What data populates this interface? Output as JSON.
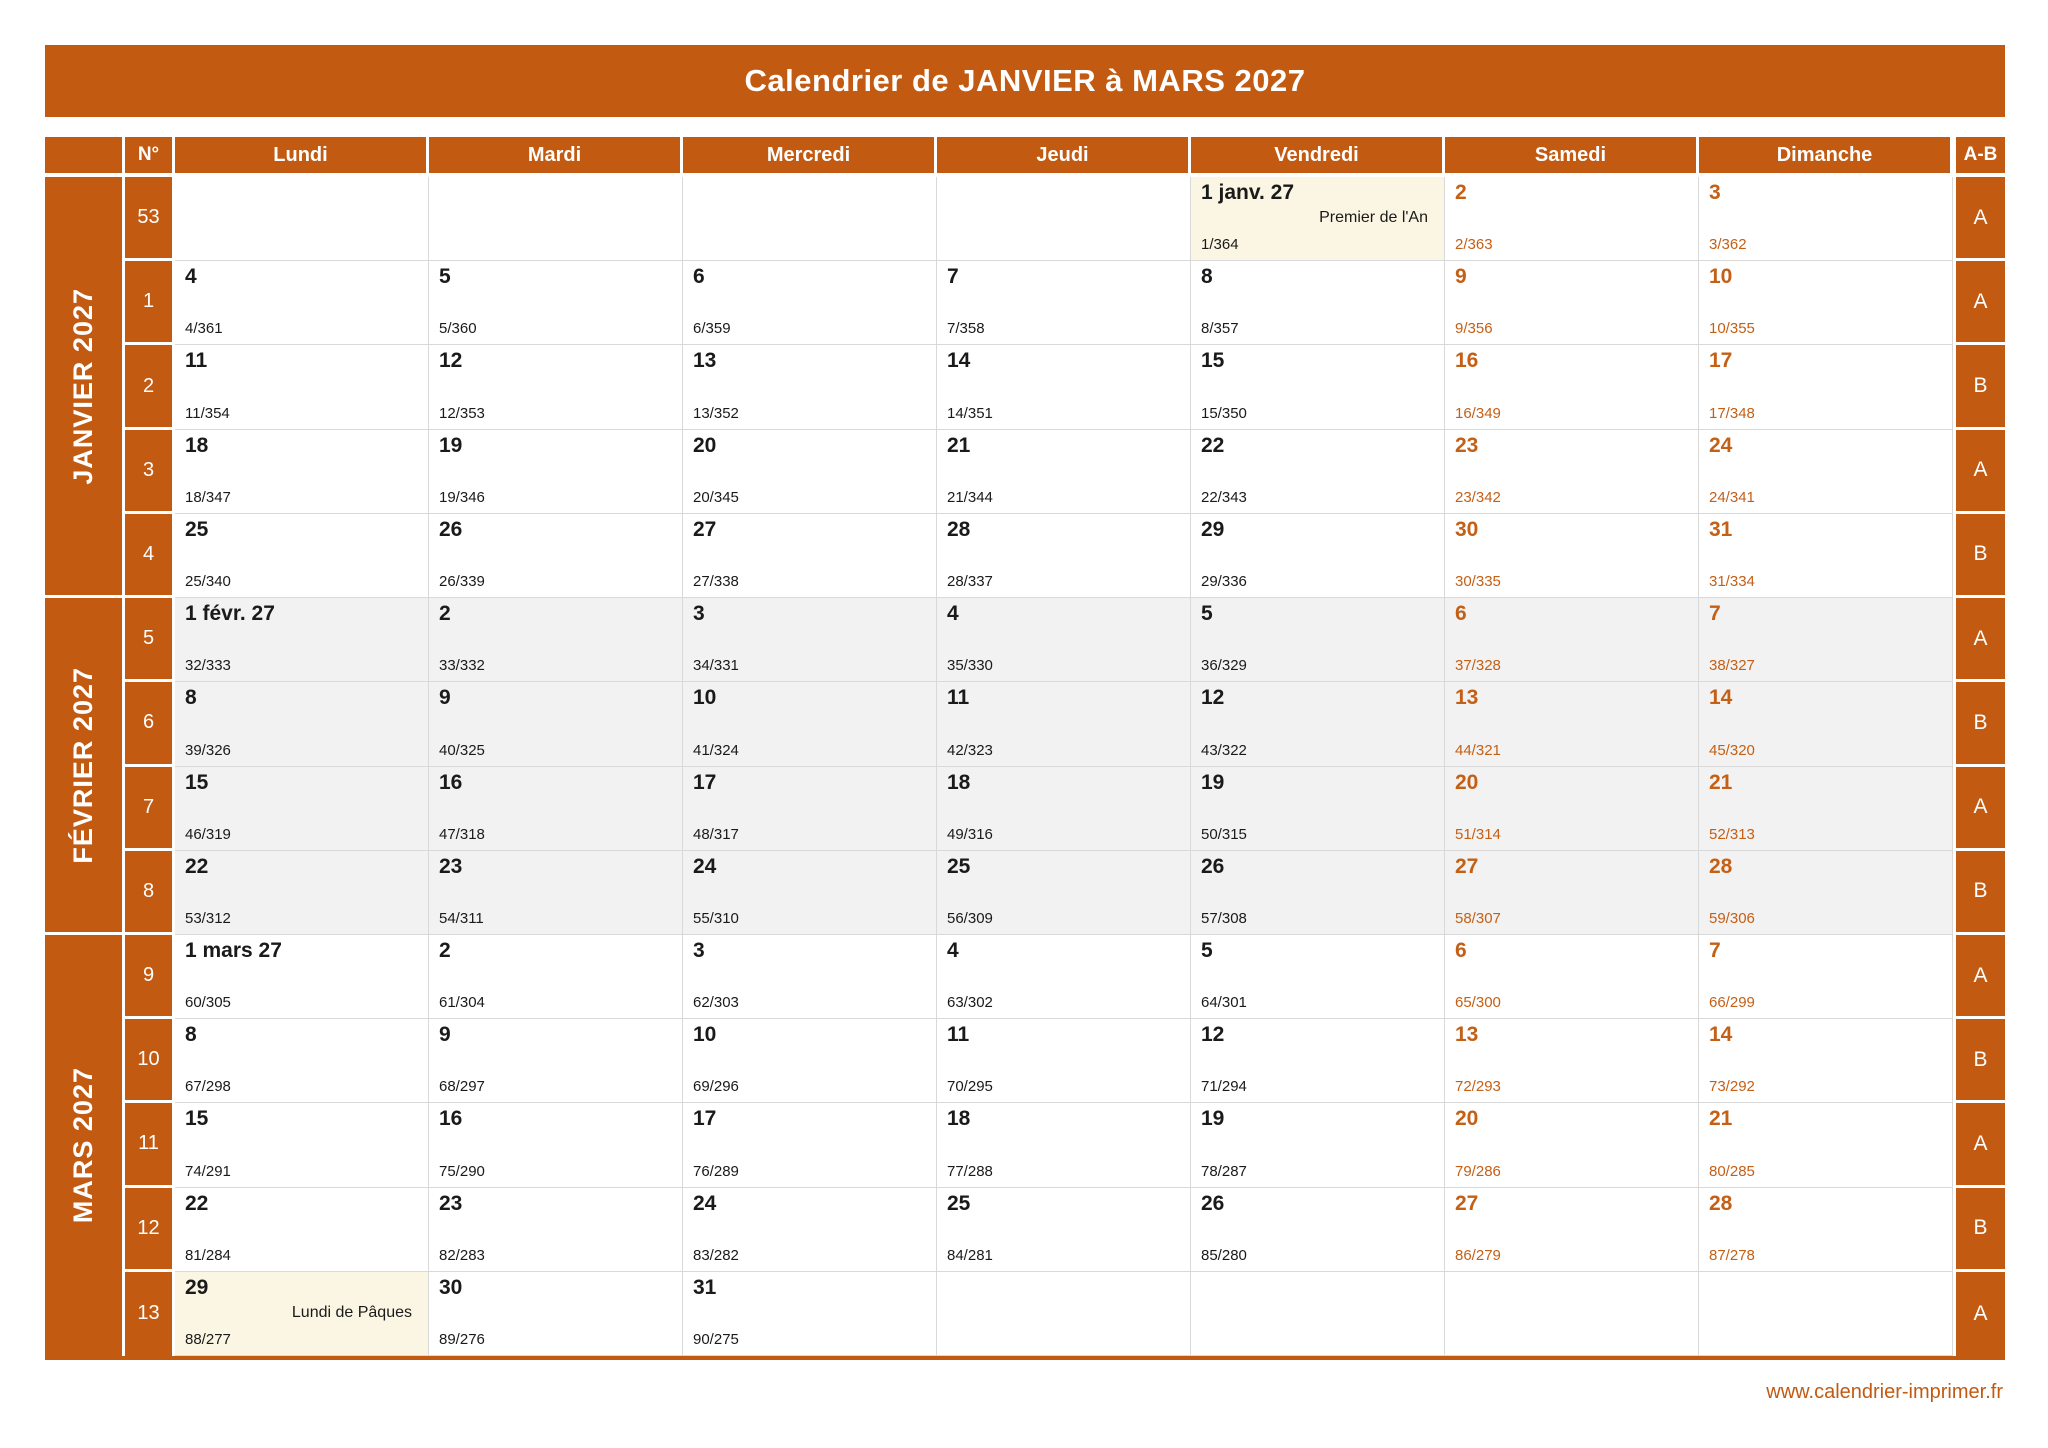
{
  "title": "Calendrier de JANVIER à MARS 2027",
  "footer": {
    "url": "www.calendrier-imprimer.fr"
  },
  "colors": {
    "orange": "#C25A12",
    "weekend_text": "#C45F16",
    "holiday_bg": "#FBF6E3",
    "february_row_bg": "#F2F2F2",
    "grid_line": "#D9D9D9",
    "header_text": "#FFFFFF",
    "text_dark": "#1A1A1A"
  },
  "table": {
    "week_col_header": "N°",
    "ab_header": "A-B",
    "day_headers": [
      "Lundi",
      "Mardi",
      "Mercredi",
      "Jeudi",
      "Vendredi",
      "Samedi",
      "Dimanche"
    ],
    "months": [
      {
        "label": "JANVIER 2027"
      },
      {
        "label": "FÉVRIER 2027"
      },
      {
        "label": "MARS 2027"
      }
    ],
    "weeks": [
      {
        "num": "53",
        "ab": "A",
        "shaded": false,
        "days": [
          null,
          null,
          null,
          null,
          {
            "label": "1 janv. 27",
            "holiday": "Premier de l'An",
            "doy": "1/364"
          },
          {
            "label": "2",
            "doy": "2/363"
          },
          {
            "label": "3",
            "doy": "3/362"
          }
        ]
      },
      {
        "num": "1",
        "ab": "A",
        "shaded": false,
        "days": [
          {
            "label": "4",
            "doy": "4/361"
          },
          {
            "label": "5",
            "doy": "5/360"
          },
          {
            "label": "6",
            "doy": "6/359"
          },
          {
            "label": "7",
            "doy": "7/358"
          },
          {
            "label": "8",
            "doy": "8/357"
          },
          {
            "label": "9",
            "doy": "9/356"
          },
          {
            "label": "10",
            "doy": "10/355"
          }
        ]
      },
      {
        "num": "2",
        "ab": "B",
        "shaded": false,
        "days": [
          {
            "label": "11",
            "doy": "11/354"
          },
          {
            "label": "12",
            "doy": "12/353"
          },
          {
            "label": "13",
            "doy": "13/352"
          },
          {
            "label": "14",
            "doy": "14/351"
          },
          {
            "label": "15",
            "doy": "15/350"
          },
          {
            "label": "16",
            "doy": "16/349"
          },
          {
            "label": "17",
            "doy": "17/348"
          }
        ]
      },
      {
        "num": "3",
        "ab": "A",
        "shaded": false,
        "days": [
          {
            "label": "18",
            "doy": "18/347"
          },
          {
            "label": "19",
            "doy": "19/346"
          },
          {
            "label": "20",
            "doy": "20/345"
          },
          {
            "label": "21",
            "doy": "21/344"
          },
          {
            "label": "22",
            "doy": "22/343"
          },
          {
            "label": "23",
            "doy": "23/342"
          },
          {
            "label": "24",
            "doy": "24/341"
          }
        ]
      },
      {
        "num": "4",
        "ab": "B",
        "shaded": false,
        "days": [
          {
            "label": "25",
            "doy": "25/340"
          },
          {
            "label": "26",
            "doy": "26/339"
          },
          {
            "label": "27",
            "doy": "27/338"
          },
          {
            "label": "28",
            "doy": "28/337"
          },
          {
            "label": "29",
            "doy": "29/336"
          },
          {
            "label": "30",
            "doy": "30/335"
          },
          {
            "label": "31",
            "doy": "31/334"
          }
        ]
      },
      {
        "num": "5",
        "ab": "A",
        "shaded": true,
        "days": [
          {
            "label": "1 févr. 27",
            "doy": "32/333"
          },
          {
            "label": "2",
            "doy": "33/332"
          },
          {
            "label": "3",
            "doy": "34/331"
          },
          {
            "label": "4",
            "doy": "35/330"
          },
          {
            "label": "5",
            "doy": "36/329"
          },
          {
            "label": "6",
            "doy": "37/328"
          },
          {
            "label": "7",
            "doy": "38/327"
          }
        ]
      },
      {
        "num": "6",
        "ab": "B",
        "shaded": true,
        "days": [
          {
            "label": "8",
            "doy": "39/326"
          },
          {
            "label": "9",
            "doy": "40/325"
          },
          {
            "label": "10",
            "doy": "41/324"
          },
          {
            "label": "11",
            "doy": "42/323"
          },
          {
            "label": "12",
            "doy": "43/322"
          },
          {
            "label": "13",
            "doy": "44/321"
          },
          {
            "label": "14",
            "doy": "45/320"
          }
        ]
      },
      {
        "num": "7",
        "ab": "A",
        "shaded": true,
        "days": [
          {
            "label": "15",
            "doy": "46/319"
          },
          {
            "label": "16",
            "doy": "47/318"
          },
          {
            "label": "17",
            "doy": "48/317"
          },
          {
            "label": "18",
            "doy": "49/316"
          },
          {
            "label": "19",
            "doy": "50/315"
          },
          {
            "label": "20",
            "doy": "51/314"
          },
          {
            "label": "21",
            "doy": "52/313"
          }
        ]
      },
      {
        "num": "8",
        "ab": "B",
        "shaded": true,
        "days": [
          {
            "label": "22",
            "doy": "53/312"
          },
          {
            "label": "23",
            "doy": "54/311"
          },
          {
            "label": "24",
            "doy": "55/310"
          },
          {
            "label": "25",
            "doy": "56/309"
          },
          {
            "label": "26",
            "doy": "57/308"
          },
          {
            "label": "27",
            "doy": "58/307"
          },
          {
            "label": "28",
            "doy": "59/306"
          }
        ]
      },
      {
        "num": "9",
        "ab": "A",
        "shaded": false,
        "days": [
          {
            "label": "1 mars 27",
            "doy": "60/305"
          },
          {
            "label": "2",
            "doy": "61/304"
          },
          {
            "label": "3",
            "doy": "62/303"
          },
          {
            "label": "4",
            "doy": "63/302"
          },
          {
            "label": "5",
            "doy": "64/301"
          },
          {
            "label": "6",
            "doy": "65/300"
          },
          {
            "label": "7",
            "doy": "66/299"
          }
        ]
      },
      {
        "num": "10",
        "ab": "B",
        "shaded": false,
        "days": [
          {
            "label": "8",
            "doy": "67/298"
          },
          {
            "label": "9",
            "doy": "68/297"
          },
          {
            "label": "10",
            "doy": "69/296"
          },
          {
            "label": "11",
            "doy": "70/295"
          },
          {
            "label": "12",
            "doy": "71/294"
          },
          {
            "label": "13",
            "doy": "72/293"
          },
          {
            "label": "14",
            "doy": "73/292"
          }
        ]
      },
      {
        "num": "11",
        "ab": "A",
        "shaded": false,
        "days": [
          {
            "label": "15",
            "doy": "74/291"
          },
          {
            "label": "16",
            "doy": "75/290"
          },
          {
            "label": "17",
            "doy": "76/289"
          },
          {
            "label": "18",
            "doy": "77/288"
          },
          {
            "label": "19",
            "doy": "78/287"
          },
          {
            "label": "20",
            "doy": "79/286"
          },
          {
            "label": "21",
            "doy": "80/285"
          }
        ]
      },
      {
        "num": "12",
        "ab": "B",
        "shaded": false,
        "days": [
          {
            "label": "22",
            "doy": "81/284"
          },
          {
            "label": "23",
            "doy": "82/283"
          },
          {
            "label": "24",
            "doy": "83/282"
          },
          {
            "label": "25",
            "doy": "84/281"
          },
          {
            "label": "26",
            "doy": "85/280"
          },
          {
            "label": "27",
            "doy": "86/279"
          },
          {
            "label": "28",
            "doy": "87/278"
          }
        ]
      },
      {
        "num": "13",
        "ab": "A",
        "shaded": false,
        "days": [
          {
            "label": "29",
            "holiday": "Lundi de Pâques",
            "doy": "88/277"
          },
          {
            "label": "30",
            "doy": "89/276"
          },
          {
            "label": "31",
            "doy": "90/275"
          },
          null,
          null,
          null,
          null
        ]
      }
    ]
  }
}
